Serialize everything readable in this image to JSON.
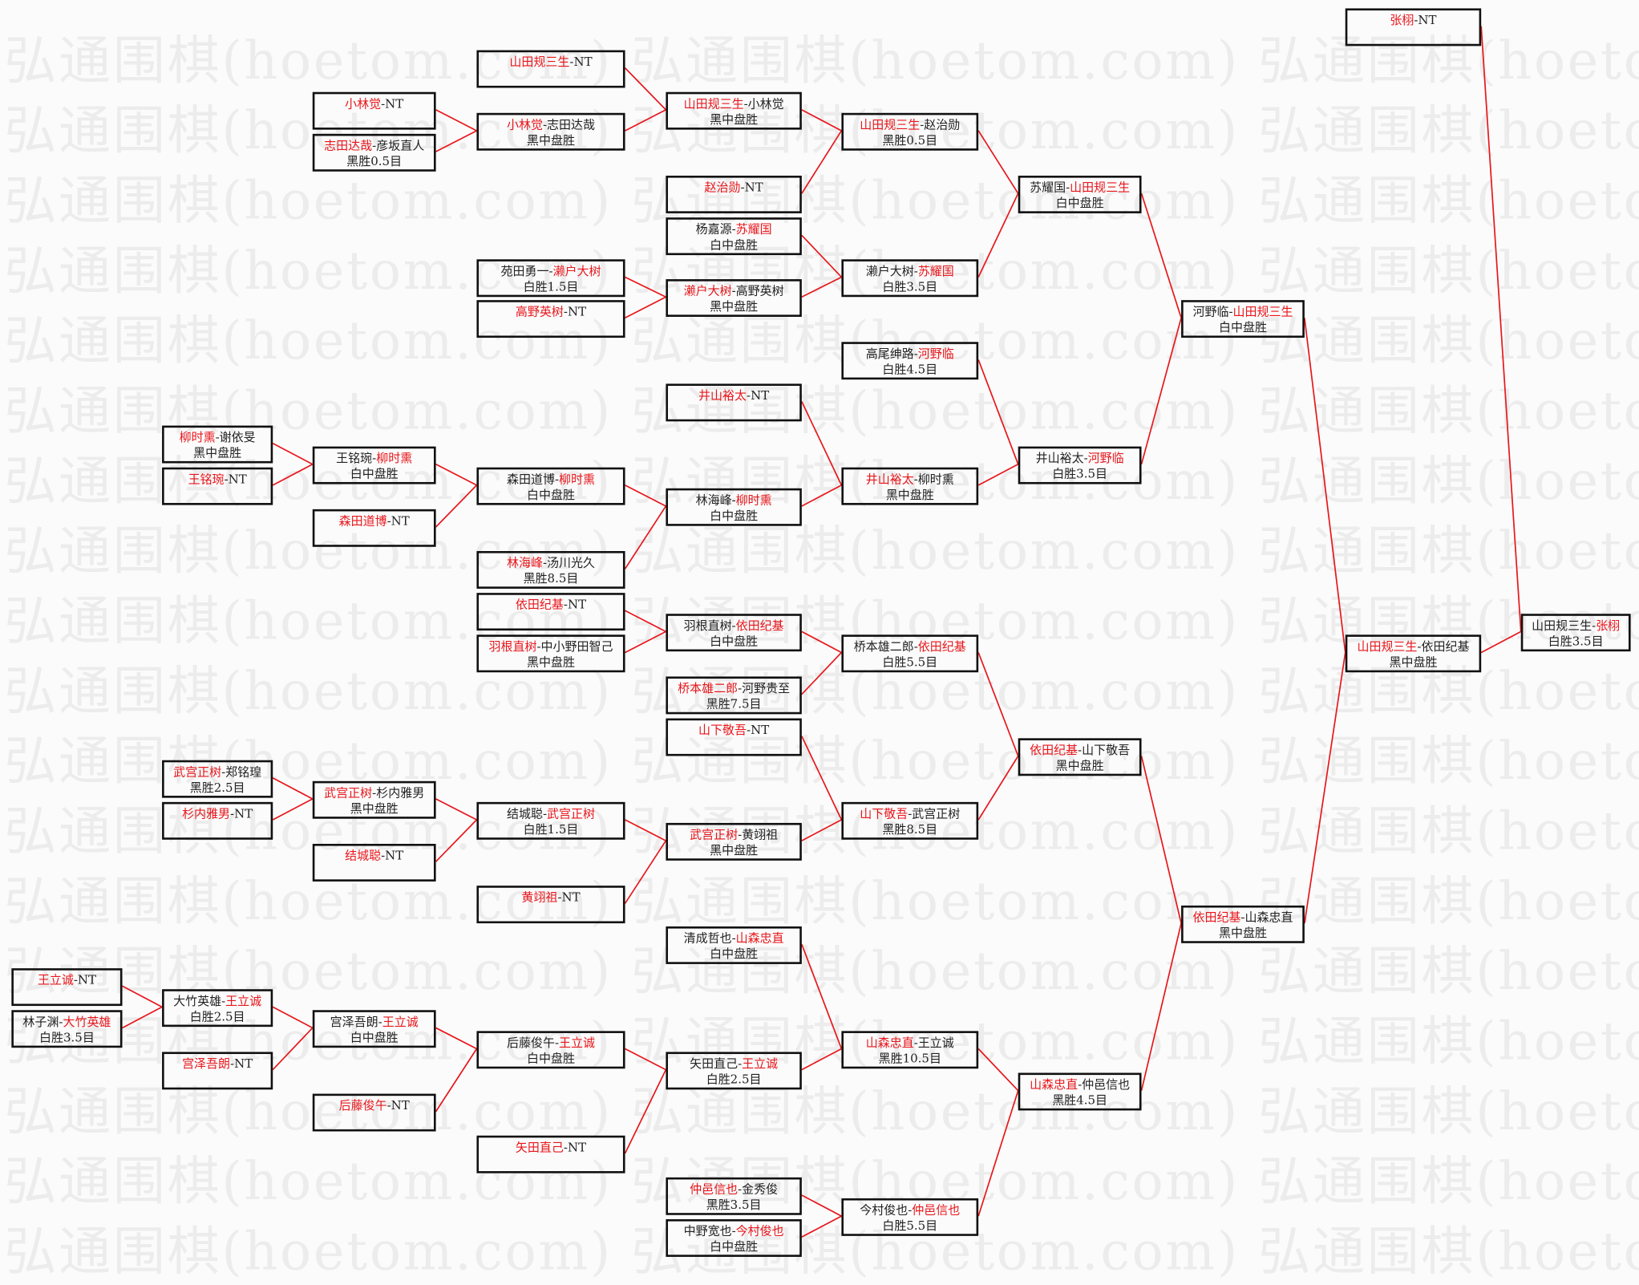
{
  "watermark": "弘通围棋(hoetom.com) 弘通围棋(hoetom.com) 弘通围棋(hoetom.com) 弘",
  "accent_color": "#e8161b",
  "line_color": "#e8161b",
  "separator": "-",
  "matches": [
    {
      "p1": "张栩",
      "p2": "NT",
      "winner": 1,
      "result": ""
    },
    {
      "p1": "山田规三生",
      "p2": "NT",
      "winner": 1,
      "result": ""
    },
    {
      "p1": "小林觉",
      "p2": "NT",
      "winner": 1,
      "result": ""
    },
    {
      "p1": "志田达哉",
      "p2": "彦坂直人",
      "winner": 1,
      "result": "黑胜0.5目"
    },
    {
      "p1": "小林觉",
      "p2": "志田达哉",
      "winner": 1,
      "result": "黑中盘胜"
    },
    {
      "p1": "山田规三生",
      "p2": "小林觉",
      "winner": 1,
      "result": "黑中盘胜"
    },
    {
      "p1": "山田规三生",
      "p2": "赵治勋",
      "winner": 1,
      "result": "黑胜0.5目"
    },
    {
      "p1": "赵治勋",
      "p2": "NT",
      "winner": 1,
      "result": ""
    },
    {
      "p1": "杨嘉源",
      "p2": "苏耀国",
      "winner": 2,
      "result": "白中盘胜"
    },
    {
      "p1": "苑田勇一",
      "p2": "濑户大树",
      "winner": 2,
      "result": "白胜1.5目"
    },
    {
      "p1": "高野英树",
      "p2": "NT",
      "winner": 1,
      "result": ""
    },
    {
      "p1": "濑户大树",
      "p2": "高野英树",
      "winner": 1,
      "result": "黑中盘胜"
    },
    {
      "p1": "濑户大树",
      "p2": "苏耀国",
      "winner": 2,
      "result": "白胜3.5目"
    },
    {
      "p1": "苏耀国",
      "p2": "山田规三生",
      "winner": 2,
      "result": "白中盘胜"
    },
    {
      "p1": "河野临",
      "p2": "山田规三生",
      "winner": 2,
      "result": "白中盘胜"
    },
    {
      "p1": "高尾绅路",
      "p2": "河野临",
      "winner": 2,
      "result": "白胜4.5目"
    },
    {
      "p1": "井山裕太",
      "p2": "NT",
      "winner": 1,
      "result": ""
    },
    {
      "p1": "柳时熏",
      "p2": "谢依旻",
      "winner": 1,
      "result": "黑中盘胜"
    },
    {
      "p1": "王铭琬",
      "p2": "NT",
      "winner": 1,
      "result": ""
    },
    {
      "p1": "王铭琬",
      "p2": "柳时熏",
      "winner": 2,
      "result": "白中盘胜"
    },
    {
      "p1": "森田道博",
      "p2": "NT",
      "winner": 1,
      "result": ""
    },
    {
      "p1": "森田道博",
      "p2": "柳时熏",
      "winner": 2,
      "result": "白中盘胜"
    },
    {
      "p1": "林海峰",
      "p2": "柳时熏",
      "winner": 2,
      "result": "白中盘胜"
    },
    {
      "p1": "井山裕太",
      "p2": "柳时熏",
      "winner": 1,
      "result": "黑中盘胜"
    },
    {
      "p1": "井山裕太",
      "p2": "河野临",
      "winner": 2,
      "result": "白胜3.5目"
    },
    {
      "p1": "林海峰",
      "p2": "汤川光久",
      "winner": 1,
      "result": "黑胜8.5目"
    },
    {
      "p1": "依田纪基",
      "p2": "NT",
      "winner": 1,
      "result": ""
    },
    {
      "p1": "羽根直树",
      "p2": "中小野田智己",
      "winner": 1,
      "result": "黑中盘胜"
    },
    {
      "p1": "羽根直树",
      "p2": "依田纪基",
      "winner": 2,
      "result": "白中盘胜"
    },
    {
      "p1": "桥本雄二郎",
      "p2": "河野贵至",
      "winner": 1,
      "result": "黑胜7.5目"
    },
    {
      "p1": "桥本雄二郎",
      "p2": "依田纪基",
      "winner": 2,
      "result": "白胜5.5目"
    },
    {
      "p1": "山下敬吾",
      "p2": "NT",
      "winner": 1,
      "result": ""
    },
    {
      "p1": "依田纪基",
      "p2": "山下敬吾",
      "winner": 1,
      "result": "黑中盘胜"
    },
    {
      "p1": "武宫正树",
      "p2": "郑铭瑝",
      "winner": 1,
      "result": "黑胜2.5目"
    },
    {
      "p1": "杉内雅男",
      "p2": "NT",
      "winner": 1,
      "result": ""
    },
    {
      "p1": "武宫正树",
      "p2": "杉内雅男",
      "winner": 1,
      "result": "黑中盘胜"
    },
    {
      "p1": "结城聪",
      "p2": "NT",
      "winner": 1,
      "result": ""
    },
    {
      "p1": "结城聪",
      "p2": "武宫正树",
      "winner": 2,
      "result": "白胜1.5目"
    },
    {
      "p1": "黄翊祖",
      "p2": "NT",
      "winner": 1,
      "result": ""
    },
    {
      "p1": "武宫正树",
      "p2": "黄翊祖",
      "winner": 1,
      "result": "黑中盘胜"
    },
    {
      "p1": "山下敬吾",
      "p2": "武宫正树",
      "winner": 1,
      "result": "黑胜8.5目"
    },
    {
      "p1": "依田纪基",
      "p2": "山森忠直",
      "winner": 1,
      "result": "黑中盘胜"
    },
    {
      "p1": "山田规三生",
      "p2": "依田纪基",
      "winner": 1,
      "result": "黑中盘胜"
    },
    {
      "p1": "山田规三生",
      "p2": "张栩",
      "winner": 2,
      "result": "白胜3.5目"
    },
    {
      "p1": "清成哲也",
      "p2": "山森忠直",
      "winner": 2,
      "result": "白中盘胜"
    },
    {
      "p1": "王立诚",
      "p2": "NT",
      "winner": 1,
      "result": ""
    },
    {
      "p1": "林子渊",
      "p2": "大竹英雄",
      "winner": 2,
      "result": "白胜3.5目"
    },
    {
      "p1": "大竹英雄",
      "p2": "王立诚",
      "winner": 2,
      "result": "白胜2.5目"
    },
    {
      "p1": "宫泽吾朗",
      "p2": "NT",
      "winner": 1,
      "result": ""
    },
    {
      "p1": "宫泽吾朗",
      "p2": "王立诚",
      "winner": 2,
      "result": "白中盘胜"
    },
    {
      "p1": "后藤俊午",
      "p2": "NT",
      "winner": 1,
      "result": ""
    },
    {
      "p1": "后藤俊午",
      "p2": "王立诚",
      "winner": 2,
      "result": "白中盘胜"
    },
    {
      "p1": "矢田直己",
      "p2": "NT",
      "winner": 1,
      "result": ""
    },
    {
      "p1": "矢田直己",
      "p2": "王立诚",
      "winner": 2,
      "result": "白胜2.5目"
    },
    {
      "p1": "山森忠直",
      "p2": "王立诚",
      "winner": 1,
      "result": "黑胜10.5目"
    },
    {
      "p1": "山森忠直",
      "p2": "仲邑信也",
      "winner": 1,
      "result": "黑胜4.5目"
    },
    {
      "p1": "仲邑信也",
      "p2": "金秀俊",
      "winner": 1,
      "result": "黑胜3.5目"
    },
    {
      "p1": "中野宽也",
      "p2": "今村俊也",
      "winner": 2,
      "result": "白中盘胜"
    },
    {
      "p1": "今村俊也",
      "p2": "仲邑信也",
      "winner": 2,
      "result": "白胜5.5目"
    }
  ]
}
